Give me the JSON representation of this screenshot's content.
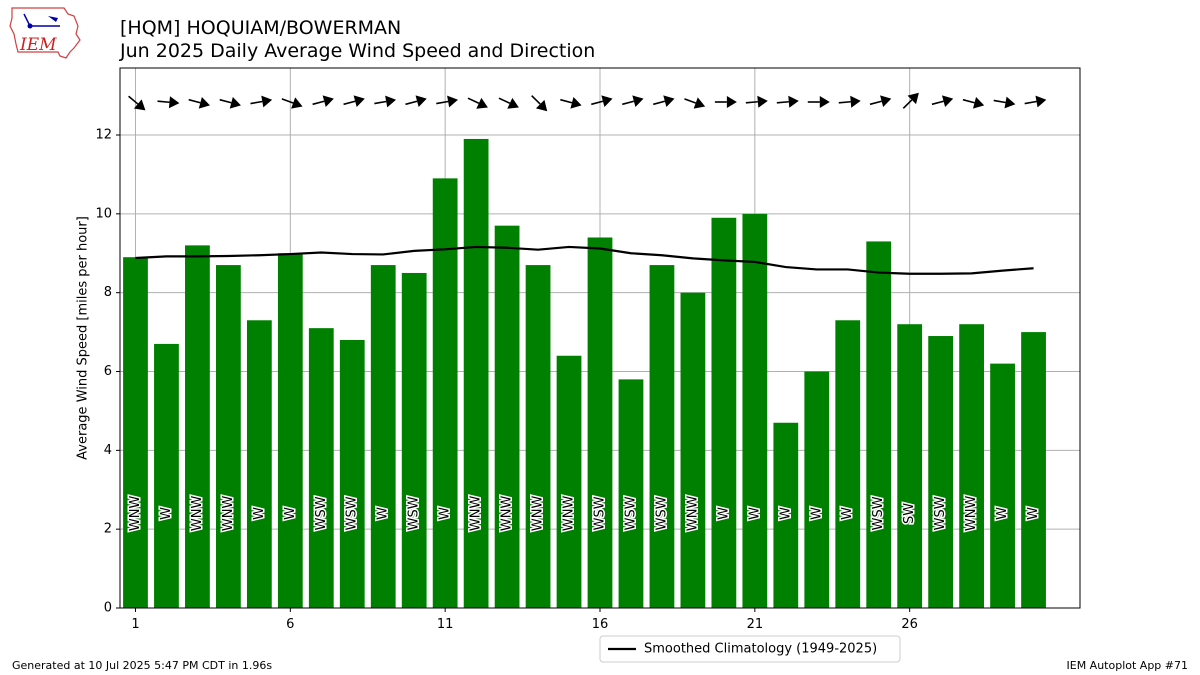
{
  "header": {
    "title_line1": "[HQM] HOQUIAM/BOWERMAN",
    "title_line2": "Jun 2025 Daily Average Wind Speed and Direction"
  },
  "logo": {
    "text": "IEM",
    "icon": "iem-iowa-map-logo"
  },
  "footer": {
    "left": "Generated at 10 Jul 2025 5:47 PM CDT in 1.96s",
    "right": "IEM Autoplot App #71"
  },
  "colors": {
    "bar": "#008000",
    "climo_line": "#000000",
    "grid": "#b0b0b0"
  },
  "chart_data": {
    "type": "bar",
    "x": [
      1,
      2,
      3,
      4,
      5,
      6,
      7,
      8,
      9,
      10,
      11,
      12,
      13,
      14,
      15,
      16,
      17,
      18,
      19,
      20,
      21,
      22,
      23,
      24,
      25,
      26,
      27,
      28,
      29,
      30
    ],
    "xticks": [
      1,
      6,
      11,
      16,
      21,
      26
    ],
    "xticklabels": [
      "1",
      "6",
      "11",
      "16",
      "21",
      "26"
    ],
    "xlim": [
      0.5,
      31.5
    ],
    "ylabel": "Average Wind Speed [miles per hour]",
    "ylim": [
      0,
      13.7
    ],
    "yticks": [
      0,
      2,
      4,
      6,
      8,
      10,
      12
    ],
    "yticklabels": [
      "0",
      "2",
      "4",
      "6",
      "8",
      "10",
      "12"
    ],
    "grid": true,
    "series": [
      {
        "kind": "bar",
        "values": [
          8.9,
          6.7,
          9.2,
          8.7,
          7.3,
          9.0,
          7.1,
          6.8,
          8.7,
          8.5,
          10.9,
          11.9,
          9.7,
          8.7,
          6.4,
          9.4,
          5.8,
          8.7,
          8.0,
          9.9,
          10.0,
          4.7,
          6.0,
          7.3,
          9.3,
          7.2,
          6.9,
          7.2,
          6.2,
          7.0
        ]
      },
      {
        "kind": "line",
        "name": "Smoothed Climatology (1949-2025)",
        "x": [
          1,
          2,
          3,
          4,
          5,
          6,
          7,
          8,
          9,
          10,
          11,
          12,
          13,
          14,
          15,
          16,
          17,
          18,
          19,
          20,
          21,
          22,
          23,
          24,
          25,
          26,
          27,
          28,
          29,
          30
        ],
        "values": [
          8.88,
          8.92,
          8.92,
          8.93,
          8.95,
          8.98,
          9.02,
          8.98,
          8.97,
          9.06,
          9.1,
          9.16,
          9.14,
          9.09,
          9.16,
          9.12,
          9.0,
          8.95,
          8.87,
          8.82,
          8.78,
          8.65,
          8.59,
          8.59,
          8.51,
          8.48,
          8.48,
          8.49,
          8.56,
          8.62
        ]
      }
    ],
    "direction_labels": [
      "WNW",
      "W",
      "WNW",
      "WNW",
      "W",
      "W",
      "WSW",
      "WSW",
      "W",
      "WSW",
      "W",
      "WNW",
      "WNW",
      "WNW",
      "WNW",
      "WSW",
      "WSW",
      "WSW",
      "WNW",
      "W",
      "W",
      "W",
      "W",
      "W",
      "WSW",
      "SW",
      "WSW",
      "WNW",
      "W",
      "W"
    ],
    "direction_arrows_deg": [
      130,
      95,
      105,
      105,
      80,
      110,
      75,
      75,
      80,
      75,
      80,
      115,
      115,
      135,
      105,
      75,
      75,
      75,
      110,
      90,
      85,
      85,
      90,
      85,
      75,
      45,
      75,
      105,
      100,
      80
    ],
    "legend": {
      "position": "bottom-center",
      "entries": [
        "Smoothed Climatology (1949-2025)"
      ]
    }
  }
}
